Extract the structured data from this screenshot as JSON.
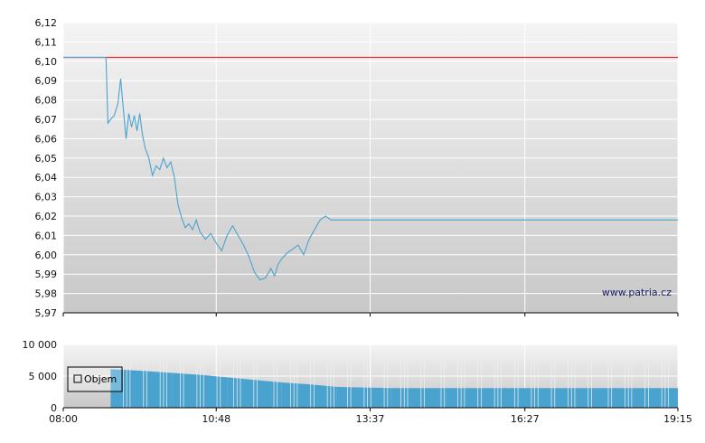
{
  "watermark": "www.patria.cz",
  "colors": {
    "price_line": "#4aa3cf",
    "reference_line": "#e03030",
    "volume_bars": "#4aa3cf",
    "plot_bg_top": "#f4f4f4",
    "plot_bg_bottom": "#c8c8c8",
    "gridline": "#ffffff"
  },
  "chart_data": [
    {
      "type": "line",
      "title": "",
      "xlabel": "",
      "ylabel": "",
      "x_ticks": [
        "08:00",
        "10:48",
        "13:37",
        "16:27",
        "19:15"
      ],
      "y_ticks": [
        "5,97",
        "5,98",
        "5,99",
        "6,00",
        "6,01",
        "6,02",
        "6,03",
        "6,04",
        "6,05",
        "6,06",
        "6,07",
        "6,08",
        "6,09",
        "6,10",
        "6,11",
        "6,12"
      ],
      "ylim": [
        5.97,
        6.12
      ],
      "xlim": [
        "08:00",
        "19:15"
      ],
      "grid": true,
      "reference_line": {
        "value": 6.102
      },
      "series": [
        {
          "x": [
            "08:00",
            "08:47",
            "08:49",
            "08:52",
            "08:56",
            "09:00",
            "09:03",
            "09:06",
            "09:09",
            "09:12",
            "09:15",
            "09:18",
            "09:21",
            "09:24",
            "09:27",
            "09:30",
            "09:34",
            "09:38",
            "09:42",
            "09:46",
            "09:50",
            "09:54",
            "09:58",
            "10:02",
            "10:06",
            "10:10",
            "10:14",
            "10:18",
            "10:22",
            "10:26",
            "10:30",
            "10:36",
            "10:42",
            "10:48",
            "10:54",
            "11:00",
            "11:06",
            "11:12",
            "11:18",
            "11:24",
            "11:30",
            "11:36",
            "11:42",
            "11:48",
            "11:52",
            "11:56",
            "12:00",
            "12:06",
            "12:12",
            "12:18",
            "12:24",
            "12:30",
            "12:36",
            "12:42",
            "12:48",
            "12:54",
            "13:00",
            "13:06",
            "13:12",
            "13:15",
            "13:20",
            "19:15"
          ],
          "y": [
            6.102,
            6.102,
            6.068,
            6.07,
            6.072,
            6.078,
            6.091,
            6.075,
            6.06,
            6.073,
            6.066,
            6.072,
            6.064,
            6.073,
            6.062,
            6.055,
            6.05,
            6.041,
            6.046,
            6.044,
            6.05,
            6.045,
            6.048,
            6.04,
            6.026,
            6.019,
            6.014,
            6.016,
            6.013,
            6.018,
            6.012,
            6.008,
            6.011,
            6.006,
            6.002,
            6.01,
            6.015,
            6.01,
            6.005,
            5.999,
            5.991,
            5.987,
            5.988,
            5.993,
            5.989,
            5.995,
            5.998,
            6.001,
            6.003,
            6.005,
            6.0,
            6.008,
            6.013,
            6.018,
            6.02,
            6.018,
            6.018,
            6.018,
            6.018,
            6.018,
            6.018,
            6.018
          ]
        }
      ]
    },
    {
      "type": "bar",
      "title": "",
      "legend": [
        "Objem"
      ],
      "legend_position": "top-left",
      "x_ticks": [
        "08:00",
        "10:48",
        "13:37",
        "16:27",
        "19:15"
      ],
      "y_ticks": [
        "0",
        "5 000",
        "10 000"
      ],
      "ylim": [
        0,
        10000
      ],
      "grid": true,
      "series": [
        {
          "name": "Objem",
          "x": [
            "08:52",
            "09:30",
            "10:00",
            "10:30",
            "11:00",
            "11:30",
            "12:00",
            "12:30",
            "13:00",
            "13:30",
            "14:00",
            "15:00",
            "16:00",
            "17:00",
            "18:00",
            "19:15"
          ],
          "values": [
            6100,
            5800,
            5500,
            5200,
            4800,
            4400,
            4000,
            3700,
            3300,
            3200,
            3100,
            3100,
            3100,
            3100,
            3100,
            3100
          ]
        }
      ]
    }
  ]
}
